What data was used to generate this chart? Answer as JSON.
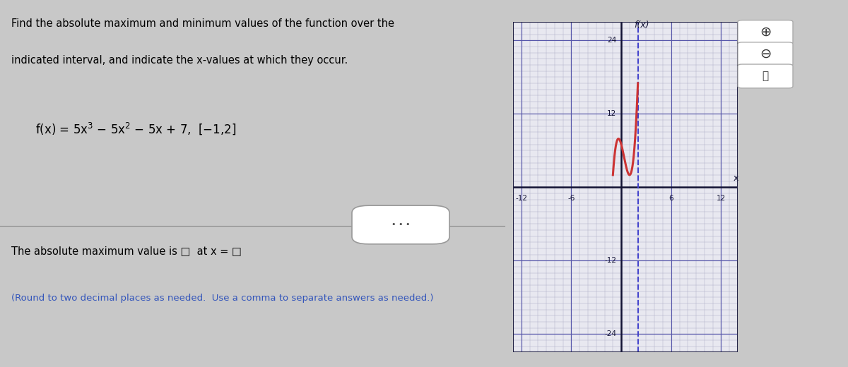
{
  "title_line1": "Find the absolute maximum and minimum values of the function over the",
  "title_line2": "indicated interval, and indicate the x-values at which they occur.",
  "page_bg": "#c8c8c8",
  "text_color": "#000000",
  "blue_text_color": "#3355bb",
  "graph_bg": "#e8e8f0",
  "graph_grid_minor_color": "#b0b0c8",
  "graph_grid_major_color": "#5555aa",
  "graph_border_color": "#222244",
  "curve_color": "#cc3333",
  "dashed_line_color": "#4444cc",
  "axis_color": "#111133",
  "axis_label_x": "x",
  "axis_label_y": "f(x)",
  "xlim": [
    -13,
    14
  ],
  "ylim": [
    -27,
    27
  ],
  "xtick_vals": [
    -12,
    -6,
    6,
    12
  ],
  "ytick_vals": [
    -24,
    -12,
    12,
    24
  ],
  "interval_start": -1,
  "interval_end": 2,
  "poly_coeffs": [
    5,
    -5,
    -5,
    7
  ]
}
